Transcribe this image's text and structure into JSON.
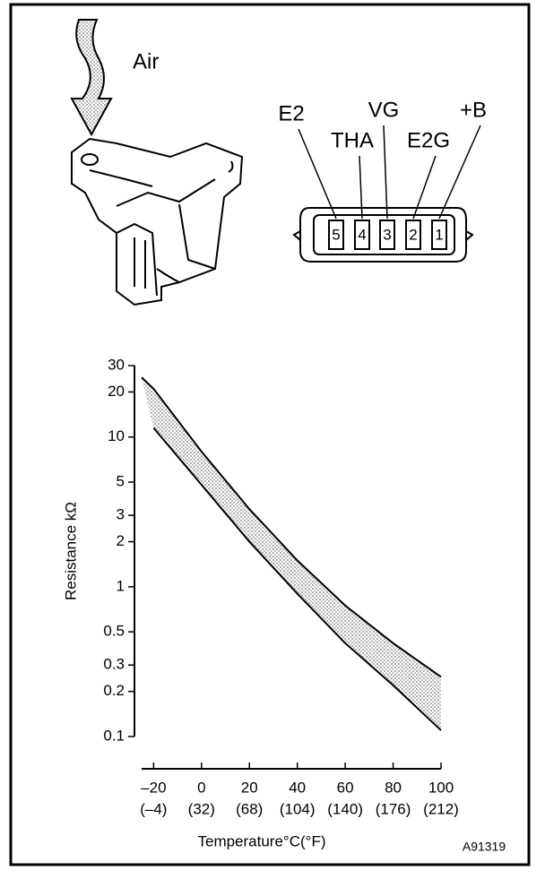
{
  "diagram": {
    "air_label": "Air",
    "pins": [
      {
        "label": "E2",
        "number": 5
      },
      {
        "label": "THA",
        "number": 4
      },
      {
        "label": "VG",
        "number": 3
      },
      {
        "label": "E2G",
        "number": 2
      },
      {
        "label": "+B",
        "number": 1
      }
    ]
  },
  "chart_data": {
    "type": "line",
    "ylabel": "Resistance kΩ",
    "xlabel": "Temperature°C(°F)",
    "x": [
      -25,
      -20,
      0,
      20,
      40,
      60,
      80,
      100
    ],
    "series": [
      {
        "color": "#000000",
        "values": [
          25,
          21,
          8,
          3.3,
          1.5,
          0.75,
          0.42,
          0.25
        ]
      },
      {
        "color": "#000000",
        "values": [
          null,
          11.5,
          4.8,
          2.0,
          0.9,
          0.42,
          0.22,
          0.11
        ]
      }
    ],
    "xlim": [
      -25,
      100
    ],
    "ylim": [
      0.1,
      30
    ],
    "ylog": true,
    "xticks": [
      {
        "value": -20,
        "label": "–20"
      },
      0,
      20,
      40,
      60,
      80,
      100
    ],
    "xtick_fahrenheit_labels": [
      "(–4)",
      "(32)",
      "(68)",
      "(104)",
      "(140)",
      "(176)",
      "(212)"
    ],
    "yticks": [
      30,
      20,
      10,
      5,
      3,
      2,
      1,
      0.5,
      0.3,
      0.2,
      0.1
    ]
  },
  "figure_id": "A91319"
}
